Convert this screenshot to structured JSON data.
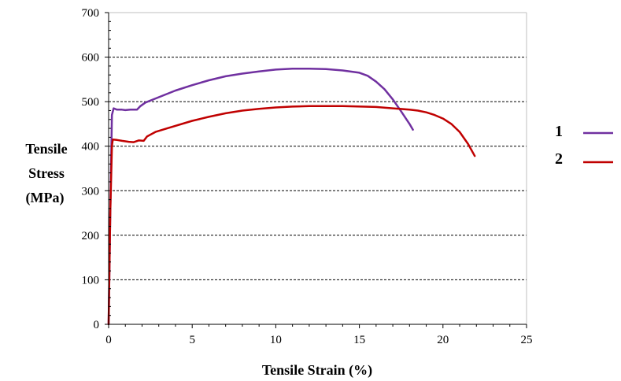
{
  "chart_data": {
    "type": "line",
    "xlabel": "Tensile Strain (%)",
    "ylabel_lines": [
      "Tensile",
      "Stress",
      "(MPa)"
    ],
    "xlim": [
      0,
      25
    ],
    "ylim": [
      0,
      700
    ],
    "xticks": [
      0,
      5,
      10,
      15,
      20,
      25
    ],
    "yticks": [
      0,
      100,
      200,
      300,
      400,
      500,
      600,
      700
    ],
    "grid": "horizontal dashed",
    "legend_position": "right",
    "series": [
      {
        "name": "1",
        "color": "#7030A0",
        "points": [
          [
            0,
            0
          ],
          [
            0.1,
            250
          ],
          [
            0.2,
            470
          ],
          [
            0.3,
            485
          ],
          [
            0.5,
            482
          ],
          [
            0.8,
            482
          ],
          [
            1.0,
            481
          ],
          [
            1.3,
            482
          ],
          [
            1.7,
            482
          ],
          [
            1.9,
            490
          ],
          [
            2.2,
            498
          ],
          [
            3,
            510
          ],
          [
            4,
            525
          ],
          [
            5,
            537
          ],
          [
            6,
            548
          ],
          [
            7,
            557
          ],
          [
            8,
            563
          ],
          [
            9,
            568
          ],
          [
            10,
            572
          ],
          [
            11,
            574
          ],
          [
            12,
            574
          ],
          [
            13,
            573
          ],
          [
            14,
            570
          ],
          [
            15,
            565
          ],
          [
            15.5,
            558
          ],
          [
            16,
            545
          ],
          [
            16.5,
            528
          ],
          [
            17,
            505
          ],
          [
            17.5,
            478
          ],
          [
            18,
            450
          ],
          [
            18.2,
            437
          ]
        ]
      },
      {
        "name": "2",
        "color": "#C00000",
        "points": [
          [
            0,
            0
          ],
          [
            0.1,
            250
          ],
          [
            0.2,
            400
          ],
          [
            0.25,
            415
          ],
          [
            0.5,
            414
          ],
          [
            0.8,
            412
          ],
          [
            1.2,
            410
          ],
          [
            1.5,
            409
          ],
          [
            1.8,
            413
          ],
          [
            2.1,
            412
          ],
          [
            2.3,
            422
          ],
          [
            2.8,
            432
          ],
          [
            3.5,
            440
          ],
          [
            5,
            457
          ],
          [
            6,
            466
          ],
          [
            7,
            474
          ],
          [
            8,
            480
          ],
          [
            9,
            484
          ],
          [
            10,
            487
          ],
          [
            11,
            489
          ],
          [
            12,
            490
          ],
          [
            14,
            490
          ],
          [
            16,
            488
          ],
          [
            17,
            485
          ],
          [
            18,
            482
          ],
          [
            18.5,
            480
          ],
          [
            19,
            476
          ],
          [
            19.5,
            470
          ],
          [
            20,
            462
          ],
          [
            20.5,
            450
          ],
          [
            21,
            432
          ],
          [
            21.5,
            405
          ],
          [
            21.9,
            378
          ]
        ]
      }
    ]
  }
}
